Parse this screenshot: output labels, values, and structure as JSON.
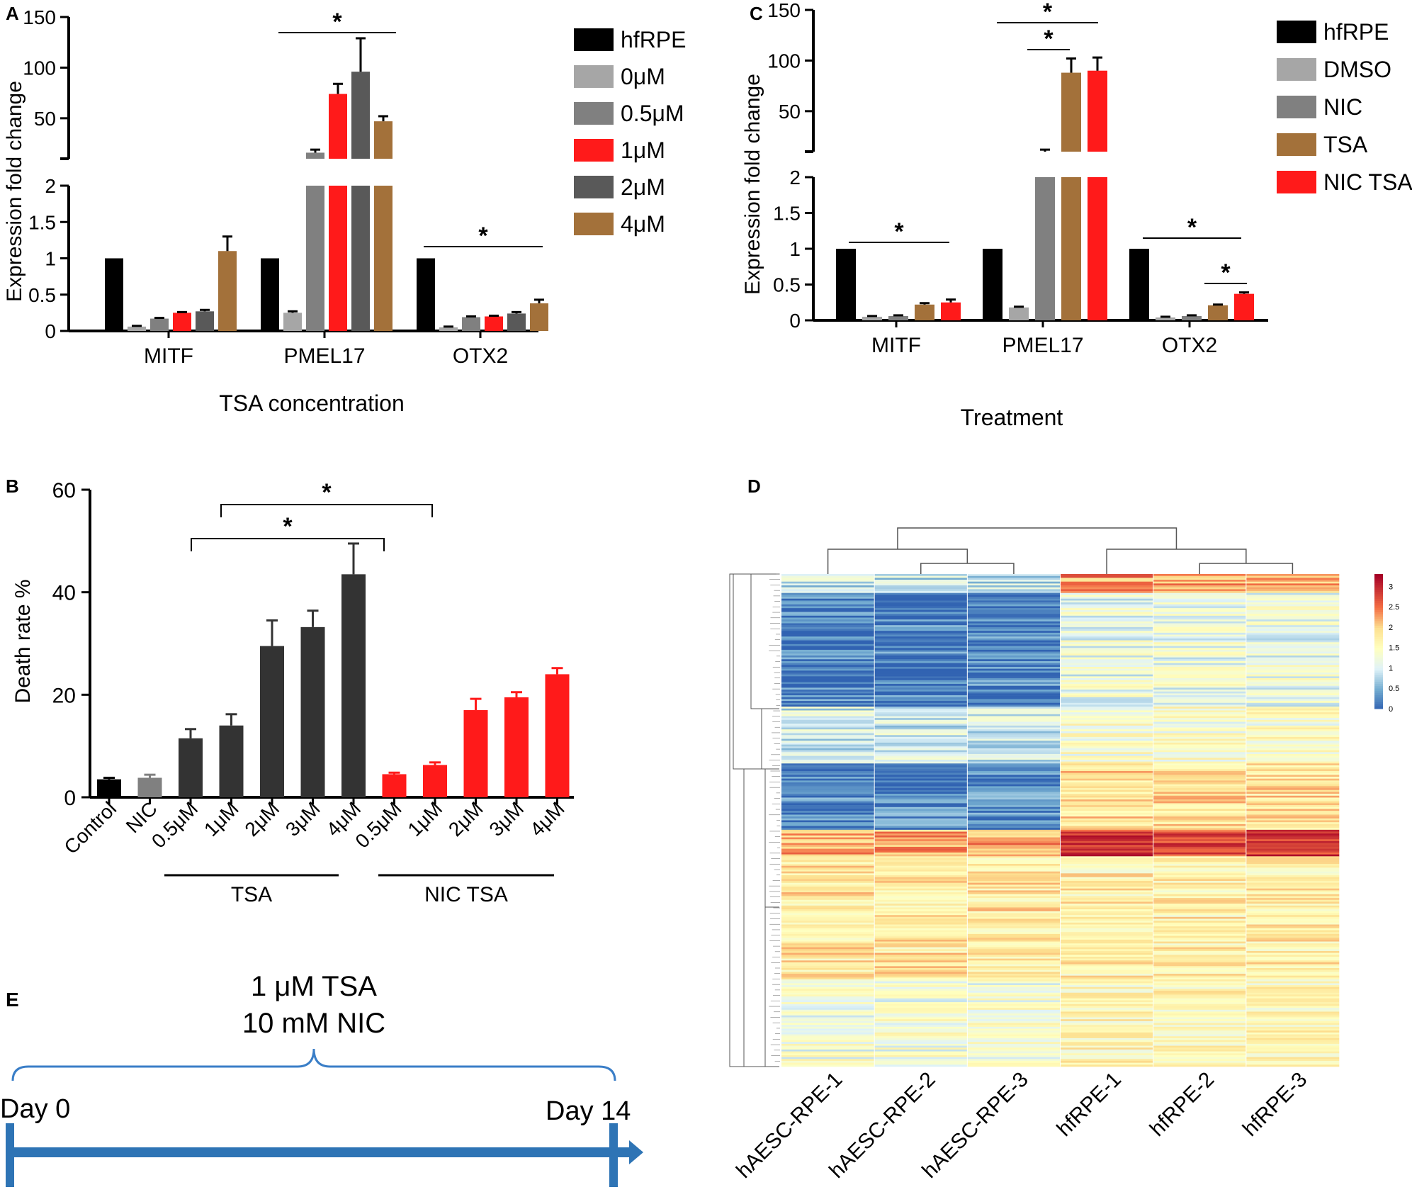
{
  "colors": {
    "black": "#000000",
    "light_gray": "#a6a6a6",
    "mid_gray": "#808080",
    "dark_gray": "#595959",
    "charcoal": "#333333",
    "red": "#ff1a1a",
    "brown": "#a3713a",
    "timeline_blue": "#2e74b5",
    "bracket_blue": "#3a7ec7"
  },
  "chart_data": [
    {
      "panel": "A",
      "type": "bar",
      "xlabel": "TSA concentration",
      "ylabel": "Expression fold change",
      "categories": [
        "MITF",
        "PMEL17",
        "OTX2"
      ],
      "lower_yticks": [
        "0",
        "0.5",
        "1",
        "1.5",
        "2"
      ],
      "upper_yticks": [
        "50",
        "100",
        "150"
      ],
      "ylim_lower": [
        0,
        2
      ],
      "ylim_upper": [
        10,
        150
      ],
      "series": [
        {
          "name": "hfRPE",
          "color": "#000000",
          "values": [
            1.0,
            1.0,
            1.0
          ],
          "errors": [
            0,
            0,
            0
          ]
        },
        {
          "name": "0μM",
          "color": "#a6a6a6",
          "values": [
            0.06,
            0.25,
            0.05
          ],
          "errors": [
            0.01,
            0.02,
            0.01
          ]
        },
        {
          "name": "0.5μM",
          "color": "#808080",
          "values": [
            0.17,
            16,
            0.19
          ],
          "errors": [
            0.01,
            3,
            0.01
          ]
        },
        {
          "name": "1μM",
          "color": "#ff1a1a",
          "values": [
            0.25,
            74,
            0.2
          ],
          "errors": [
            0.01,
            10,
            0.01
          ]
        },
        {
          "name": "2μM",
          "color": "#595959",
          "values": [
            0.27,
            96,
            0.24
          ],
          "errors": [
            0.02,
            33,
            0.02
          ]
        },
        {
          "name": "4μM",
          "color": "#a3713a",
          "values": [
            1.1,
            47,
            0.38
          ],
          "errors": [
            0.2,
            5,
            0.05
          ]
        }
      ],
      "significance": [
        {
          "label": "*",
          "category": "PMEL17"
        },
        {
          "label": "*",
          "category": "OTX2"
        }
      ]
    },
    {
      "panel": "C",
      "type": "bar",
      "xlabel": "Treatment",
      "ylabel": "Expression fold change",
      "categories": [
        "MITF",
        "PMEL17",
        "OTX2"
      ],
      "lower_yticks": [
        "0",
        "0.5",
        "1",
        "1.5",
        "2"
      ],
      "upper_yticks": [
        "50",
        "100",
        "150"
      ],
      "ylim_lower": [
        0,
        2
      ],
      "ylim_upper": [
        10,
        150
      ],
      "series": [
        {
          "name": "hfRPE",
          "color": "#000000",
          "values": [
            1.0,
            1.0,
            1.0
          ],
          "errors": [
            0,
            0,
            0
          ]
        },
        {
          "name": "DMSO",
          "color": "#a6a6a6",
          "values": [
            0.05,
            0.18,
            0.04
          ],
          "errors": [
            0.01,
            0.01,
            0.01
          ]
        },
        {
          "name": "NIC",
          "color": "#808080",
          "values": [
            0.06,
            10,
            0.06
          ],
          "errors": [
            0.01,
            2,
            0.01
          ]
        },
        {
          "name": "TSA",
          "color": "#a3713a",
          "values": [
            0.22,
            88,
            0.21
          ],
          "errors": [
            0.02,
            14,
            0.01
          ]
        },
        {
          "name": "NIC TSA",
          "color": "#ff1a1a",
          "values": [
            0.25,
            90,
            0.37
          ],
          "errors": [
            0.04,
            13,
            0.02
          ]
        }
      ],
      "significance": [
        {
          "label": "*",
          "category": "MITF"
        },
        {
          "label": "*",
          "category": "PMEL17"
        },
        {
          "label": "*",
          "category": "PMEL17"
        },
        {
          "label": "*",
          "category": "OTX2"
        },
        {
          "label": "*",
          "category": "OTX2"
        }
      ]
    },
    {
      "panel": "B",
      "type": "bar",
      "ylabel": "Death rate %",
      "ylim": [
        0,
        60
      ],
      "yticks": [
        "0",
        "20",
        "40",
        "60"
      ],
      "categories": [
        "Control",
        "NIC",
        "0.5μM",
        "1μM",
        "2μM",
        "3μM",
        "4μM",
        "0.5μM",
        "1μM",
        "2μM",
        "3μM",
        "4μM"
      ],
      "values": [
        3.5,
        3.8,
        11.5,
        14,
        29.5,
        33.2,
        43.5,
        4.5,
        6.3,
        17,
        19.5,
        24
      ],
      "errors": [
        0.3,
        0.6,
        1.8,
        2.2,
        5,
        3.2,
        6,
        0.3,
        0.5,
        2.2,
        1,
        1.2
      ],
      "bar_colors": [
        "#000000",
        "#808080",
        "#333333",
        "#333333",
        "#333333",
        "#333333",
        "#333333",
        "#ff1a1a",
        "#ff1a1a",
        "#ff1a1a",
        "#ff1a1a",
        "#ff1a1a"
      ],
      "groups": [
        {
          "label": "TSA"
        },
        {
          "label": "NIC TSA"
        }
      ],
      "significance": [
        {
          "label": "*"
        },
        {
          "label": "*"
        }
      ]
    },
    {
      "panel": "D",
      "type": "heatmap",
      "columns": [
        "hAESC-RPE-1",
        "hAESC-RPE-2",
        "hAESC-RPE-3",
        "hfRPE-1",
        "hfRPE-2",
        "hfRPE-3"
      ],
      "colorbar_ticks": [
        "3",
        "2.5",
        "2",
        "1.5",
        "1",
        "0.5",
        "0"
      ],
      "color_range": [
        0,
        3.3
      ]
    }
  ],
  "panel_e": {
    "label": "E",
    "treatment_line1": "1 μM TSA",
    "treatment_line2": "10 mM NIC",
    "start_label": "Day 0",
    "end_label": "Day 14"
  }
}
